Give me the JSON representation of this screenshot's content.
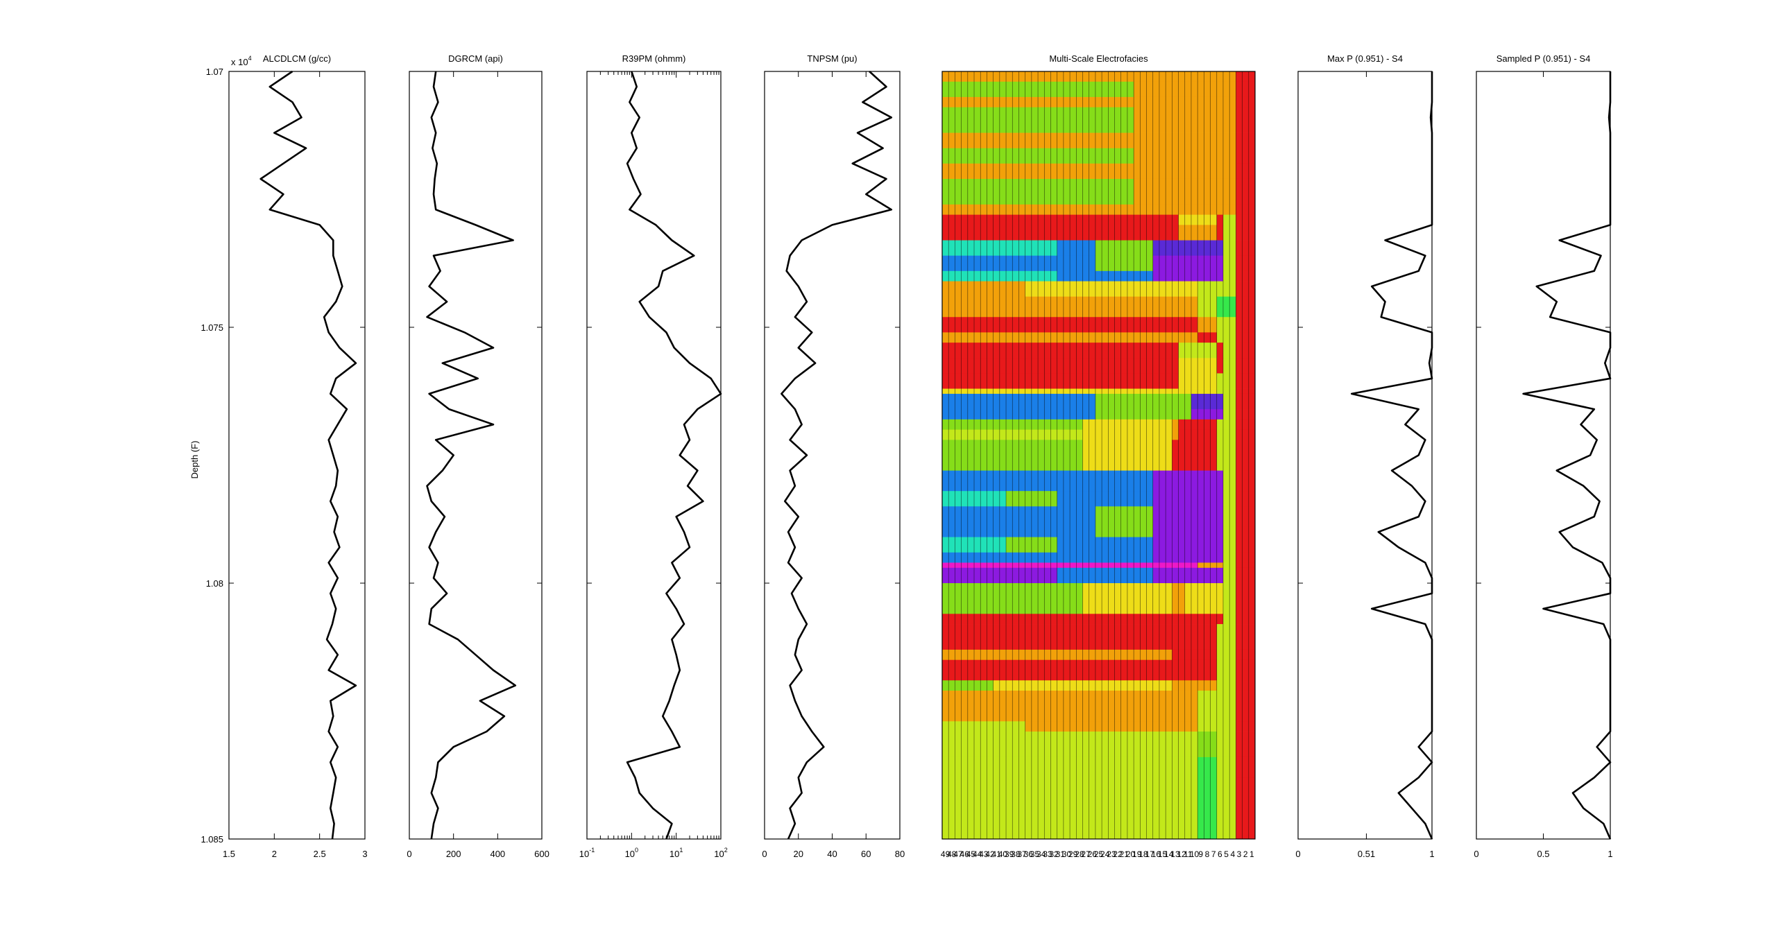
{
  "figure": {
    "ylabel": "Depth (F)",
    "y_exponent_label": "x 10",
    "y_exponent_power": "4",
    "y_ticks": [
      1.07,
      1.075,
      1.08,
      1.085
    ],
    "y_tick_labels": [
      "1.07",
      "1.075",
      "1.08",
      "1.085"
    ]
  },
  "chart_data": [
    {
      "type": "line",
      "title": "ALCDLCM (g/cc)",
      "xlim": [
        1.5,
        3
      ],
      "x_ticks": [
        1.5,
        2,
        2.5,
        3
      ],
      "x_tick_labels": [
        "1.5",
        "2",
        "2.5",
        "3"
      ],
      "y_label": "Depth (F)",
      "ylim": [
        10700,
        10850
      ],
      "y_reversed": true,
      "depth_values": [
        10700,
        10703,
        10706,
        10709,
        10712,
        10715,
        10718,
        10721,
        10724,
        10727,
        10730,
        10733,
        10736,
        10739,
        10742,
        10745,
        10748,
        10751,
        10754,
        10757,
        10760,
        10763,
        10766,
        10769,
        10772,
        10775,
        10778,
        10781,
        10784,
        10787,
        10790,
        10793,
        10796,
        10799,
        10802,
        10805,
        10808,
        10811,
        10814,
        10817,
        10820,
        10823,
        10826,
        10829,
        10832,
        10835,
        10838,
        10841,
        10844,
        10847,
        10850
      ],
      "values": [
        2.2,
        1.95,
        2.2,
        2.3,
        2.0,
        2.35,
        2.1,
        1.85,
        2.1,
        1.95,
        2.5,
        2.65,
        2.65,
        2.7,
        2.75,
        2.68,
        2.55,
        2.6,
        2.72,
        2.9,
        2.68,
        2.62,
        2.8,
        2.7,
        2.6,
        2.65,
        2.7,
        2.68,
        2.62,
        2.7,
        2.66,
        2.72,
        2.6,
        2.7,
        2.62,
        2.68,
        2.64,
        2.58,
        2.7,
        2.6,
        2.9,
        2.62,
        2.65,
        2.6,
        2.7,
        2.62,
        2.68,
        2.65,
        2.62,
        2.66,
        2.64
      ]
    },
    {
      "type": "line",
      "title": "DGRCM (api)",
      "xlim": [
        0,
        600
      ],
      "x_ticks": [
        0,
        200,
        400,
        600
      ],
      "x_tick_labels": [
        "0",
        "200",
        "400",
        "600"
      ],
      "y_label": "Depth (F)",
      "ylim": [
        10700,
        10850
      ],
      "y_reversed": true,
      "depth_values": [
        10700,
        10703,
        10706,
        10709,
        10712,
        10715,
        10718,
        10721,
        10724,
        10727,
        10730,
        10733,
        10736,
        10739,
        10742,
        10745,
        10748,
        10751,
        10754,
        10757,
        10760,
        10763,
        10766,
        10769,
        10772,
        10775,
        10778,
        10781,
        10784,
        10787,
        10790,
        10793,
        10796,
        10799,
        10802,
        10805,
        10808,
        10811,
        10814,
        10817,
        10820,
        10823,
        10826,
        10829,
        10832,
        10835,
        10838,
        10841,
        10844,
        10847,
        10850
      ],
      "values": [
        120,
        110,
        130,
        100,
        120,
        105,
        125,
        115,
        110,
        120,
        300,
        470,
        110,
        140,
        90,
        170,
        80,
        250,
        380,
        150,
        310,
        90,
        180,
        380,
        120,
        200,
        150,
        80,
        100,
        160,
        120,
        90,
        130,
        110,
        170,
        100,
        90,
        220,
        300,
        380,
        480,
        320,
        430,
        350,
        200,
        130,
        120,
        100,
        130,
        110,
        100
      ]
    },
    {
      "type": "line",
      "title": "R39PM (ohmm)",
      "x_scale": "log",
      "xlim": [
        0.1,
        100
      ],
      "x_ticks": [
        0.1,
        1,
        10,
        100
      ],
      "x_tick_base": "10",
      "x_tick_exponents": [
        "-1",
        "0",
        "1",
        "2"
      ],
      "y_label": "Depth (F)",
      "ylim": [
        10700,
        10850
      ],
      "y_reversed": true,
      "depth_values": [
        10700,
        10703,
        10706,
        10709,
        10712,
        10715,
        10718,
        10721,
        10724,
        10727,
        10730,
        10733,
        10736,
        10739,
        10742,
        10745,
        10748,
        10751,
        10754,
        10757,
        10760,
        10763,
        10766,
        10769,
        10772,
        10775,
        10778,
        10781,
        10784,
        10787,
        10790,
        10793,
        10796,
        10799,
        10802,
        10805,
        10808,
        10811,
        10814,
        10817,
        10820,
        10823,
        10826,
        10829,
        10832,
        10835,
        10838,
        10841,
        10844,
        10847,
        10850
      ],
      "values": [
        1.0,
        1.3,
        0.9,
        1.5,
        1.0,
        1.3,
        0.8,
        1.1,
        1.6,
        0.9,
        3.5,
        8.0,
        25,
        5.0,
        4.0,
        1.5,
        2.5,
        6.0,
        9.0,
        20,
        60,
        100,
        30,
        15,
        20,
        12,
        30,
        18,
        40,
        10,
        15,
        20,
        8,
        12,
        6,
        10,
        15,
        8,
        10,
        12,
        9,
        7,
        5,
        8,
        12,
        0.8,
        1.2,
        1.5,
        3.0,
        8.0,
        6.0
      ]
    },
    {
      "type": "line",
      "title": "TNPSM (pu)",
      "xlim": [
        0,
        80
      ],
      "x_ticks": [
        0,
        20,
        40,
        60,
        80
      ],
      "x_tick_labels": [
        "0",
        "20",
        "40",
        "60",
        "80"
      ],
      "y_label": "Depth (F)",
      "ylim": [
        10700,
        10850
      ],
      "y_reversed": true,
      "depth_values": [
        10700,
        10703,
        10706,
        10709,
        10712,
        10715,
        10718,
        10721,
        10724,
        10727,
        10730,
        10733,
        10736,
        10739,
        10742,
        10745,
        10748,
        10751,
        10754,
        10757,
        10760,
        10763,
        10766,
        10769,
        10772,
        10775,
        10778,
        10781,
        10784,
        10787,
        10790,
        10793,
        10796,
        10799,
        10802,
        10805,
        10808,
        10811,
        10814,
        10817,
        10820,
        10823,
        10826,
        10829,
        10832,
        10835,
        10838,
        10841,
        10844,
        10847,
        10850
      ],
      "values": [
        62,
        72,
        58,
        75,
        55,
        70,
        52,
        72,
        60,
        75,
        40,
        22,
        15,
        13,
        20,
        25,
        18,
        28,
        20,
        30,
        18,
        10,
        18,
        22,
        15,
        25,
        15,
        18,
        12,
        20,
        14,
        18,
        14,
        22,
        16,
        20,
        25,
        20,
        18,
        22,
        15,
        18,
        22,
        28,
        35,
        25,
        20,
        22,
        15,
        18,
        14
      ]
    },
    {
      "type": "heatmap",
      "title": "Multi-Scale Electrofacies",
      "x_tick_labels": [
        "49",
        "48",
        "47",
        "46",
        "45",
        "44",
        "43",
        "42",
        "41",
        "40",
        "39",
        "38",
        "37",
        "36",
        "35",
        "34",
        "33",
        "32",
        "31",
        "30",
        "29",
        "28",
        "27",
        "26",
        "25",
        "24",
        "23",
        "22",
        "21",
        "20",
        "19",
        "18",
        "17",
        "16",
        "15",
        "14",
        "13",
        "12",
        "11",
        "10",
        "9",
        "8",
        "7",
        "6",
        "5",
        "4",
        "3",
        "2",
        "1"
      ],
      "y_label": "Depth (F)",
      "ylim": [
        10700,
        10850
      ],
      "y_reversed": true,
      "palette": [
        "#e8191b",
        "#f2a10a",
        "#eedd18",
        "#c3e81a",
        "#86dd19",
        "#36e84b",
        "#20e2b8",
        "#1a7fe8",
        "#5a2ad6",
        "#8c1ae0",
        "#ee18c8"
      ]
    },
    {
      "type": "line",
      "title": "Max P (0.951) - S4",
      "xlim": [
        0,
        1
      ],
      "x_ticks": [
        0,
        0.51,
        1
      ],
      "x_tick_labels": [
        "0",
        "0.51",
        "1"
      ],
      "y_label": "Depth (F)",
      "ylim": [
        10700,
        10850
      ],
      "y_reversed": true,
      "depth_values": [
        10700,
        10703,
        10706,
        10709,
        10712,
        10715,
        10718,
        10721,
        10724,
        10727,
        10730,
        10733,
        10736,
        10739,
        10742,
        10745,
        10748,
        10751,
        10754,
        10757,
        10760,
        10763,
        10766,
        10769,
        10772,
        10775,
        10778,
        10781,
        10784,
        10787,
        10790,
        10793,
        10796,
        10799,
        10802,
        10805,
        10808,
        10811,
        10814,
        10817,
        10820,
        10823,
        10826,
        10829,
        10832,
        10835,
        10838,
        10841,
        10844,
        10847,
        10850
      ],
      "values": [
        1.0,
        1.0,
        1.0,
        0.99,
        1.0,
        1.0,
        1.0,
        1.0,
        1.0,
        1.0,
        1.0,
        0.65,
        0.95,
        0.9,
        0.55,
        0.65,
        0.62,
        1.0,
        1.0,
        0.98,
        1.0,
        0.4,
        0.9,
        0.8,
        0.95,
        0.9,
        0.7,
        0.85,
        0.95,
        0.9,
        0.6,
        0.75,
        0.95,
        1.0,
        1.0,
        0.55,
        0.95,
        1.0,
        1.0,
        1.0,
        1.0,
        1.0,
        1.0,
        1.0,
        0.9,
        1.0,
        0.9,
        0.75,
        0.85,
        0.95,
        1.0
      ]
    },
    {
      "type": "line",
      "title": "Sampled P (0.951) - S4",
      "xlim": [
        0,
        1
      ],
      "x_ticks": [
        0,
        0.5,
        1
      ],
      "x_tick_labels": [
        "0",
        "0.5",
        "1"
      ],
      "y_label": "Depth (F)",
      "ylim": [
        10700,
        10850
      ],
      "y_reversed": true,
      "depth_values": [
        10700,
        10703,
        10706,
        10709,
        10712,
        10715,
        10718,
        10721,
        10724,
        10727,
        10730,
        10733,
        10736,
        10739,
        10742,
        10745,
        10748,
        10751,
        10754,
        10757,
        10760,
        10763,
        10766,
        10769,
        10772,
        10775,
        10778,
        10781,
        10784,
        10787,
        10790,
        10793,
        10796,
        10799,
        10802,
        10805,
        10808,
        10811,
        10814,
        10817,
        10820,
        10823,
        10826,
        10829,
        10832,
        10835,
        10838,
        10841,
        10844,
        10847,
        10850
      ],
      "values": [
        1.0,
        1.0,
        1.0,
        0.99,
        1.0,
        1.0,
        1.0,
        1.0,
        1.0,
        1.0,
        1.0,
        0.62,
        0.93,
        0.88,
        0.45,
        0.6,
        0.55,
        1.0,
        1.0,
        0.96,
        1.0,
        0.35,
        0.88,
        0.78,
        0.9,
        0.85,
        0.6,
        0.8,
        0.92,
        0.88,
        0.62,
        0.72,
        0.94,
        1.0,
        1.0,
        0.5,
        0.95,
        1.0,
        1.0,
        1.0,
        1.0,
        1.0,
        1.0,
        1.0,
        0.9,
        1.0,
        0.88,
        0.72,
        0.8,
        0.95,
        1.0
      ]
    }
  ]
}
